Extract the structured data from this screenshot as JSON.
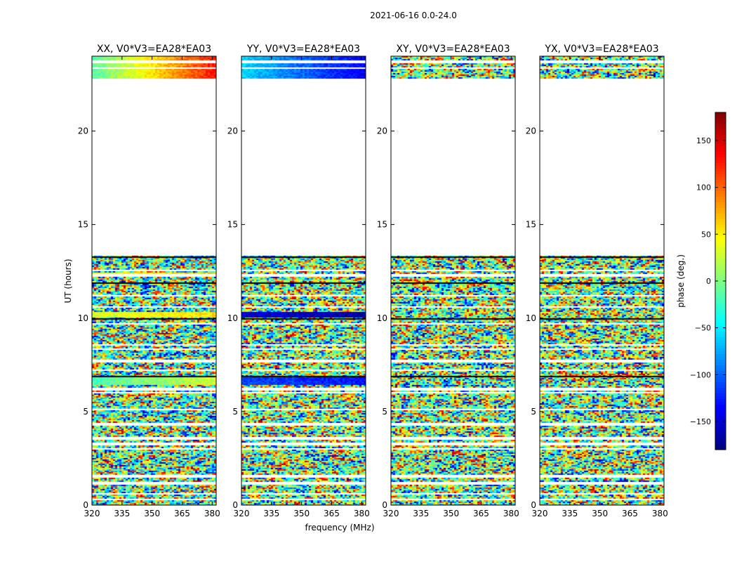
{
  "figure": {
    "suptitle": "2021-06-16 0.0-24.0",
    "xlabel": "frequency (MHz)",
    "ylabel": "UT (hours)"
  },
  "chart_data": {
    "type": "heatmap",
    "xlim": [
      320,
      382
    ],
    "ylim": [
      0,
      24
    ],
    "xticks": [
      320,
      335,
      350,
      365,
      380
    ],
    "yticks": [
      0,
      5,
      10,
      15,
      20
    ],
    "panels": [
      {
        "title": "XX, V0*V3=EA28*EA03",
        "coherent": true,
        "bias_hue": 0.35
      },
      {
        "title": "YY, V0*V3=EA28*EA03",
        "coherent": true,
        "bias_hue": 0.5
      },
      {
        "title": "XY, V0*V3=EA28*EA03",
        "coherent": false,
        "bias_hue": 0.5
      },
      {
        "title": "YX, V0*V3=EA28*EA03",
        "coherent": false,
        "bias_hue": 0.5
      }
    ],
    "data_gaps_hours": [
      [
        13.35,
        22.8
      ]
    ],
    "blank_rows_hours": [
      0.3,
      0.6,
      1.15,
      1.55,
      3.0,
      3.25,
      3.55,
      4.3,
      5.1,
      6.0,
      6.2,
      7.2,
      7.7,
      8.35,
      8.55,
      9.7,
      10.6,
      11.2,
      12.3,
      12.55,
      23.35,
      23.7
    ],
    "coherent_bands": [
      {
        "panel": 0,
        "hours": [
          22.8,
          24.0
        ],
        "phase_start_deg": -15,
        "phase_end_deg": 130
      },
      {
        "panel": 0,
        "hours": [
          10.05,
          10.35
        ],
        "phase_start_deg": 30,
        "phase_end_deg": 60
      },
      {
        "panel": 0,
        "hours": [
          12.3,
          12.45
        ],
        "phase_start_deg": 40,
        "phase_end_deg": 60
      },
      {
        "panel": 0,
        "hours": [
          6.45,
          6.85
        ],
        "phase_start_deg": -20,
        "phase_end_deg": 30
      },
      {
        "panel": 1,
        "hours": [
          22.8,
          24.0
        ],
        "phase_start_deg": -60,
        "phase_end_deg": -140
      },
      {
        "panel": 1,
        "hours": [
          6.45,
          6.85
        ],
        "phase_start_deg": -110,
        "phase_end_deg": -130
      },
      {
        "panel": 1,
        "hours": [
          10.05,
          10.35
        ],
        "phase_start_deg": -150,
        "phase_end_deg": -170
      }
    ],
    "colorbar": {
      "label": "phase (deg.)",
      "range": [
        -180,
        180
      ],
      "ticks": [
        150,
        100,
        50,
        0,
        -50,
        -100,
        -150
      ],
      "tick_labels": [
        "150",
        "100",
        "50",
        "0",
        "−50",
        "−100",
        "−150"
      ],
      "colormap": "jet"
    }
  }
}
